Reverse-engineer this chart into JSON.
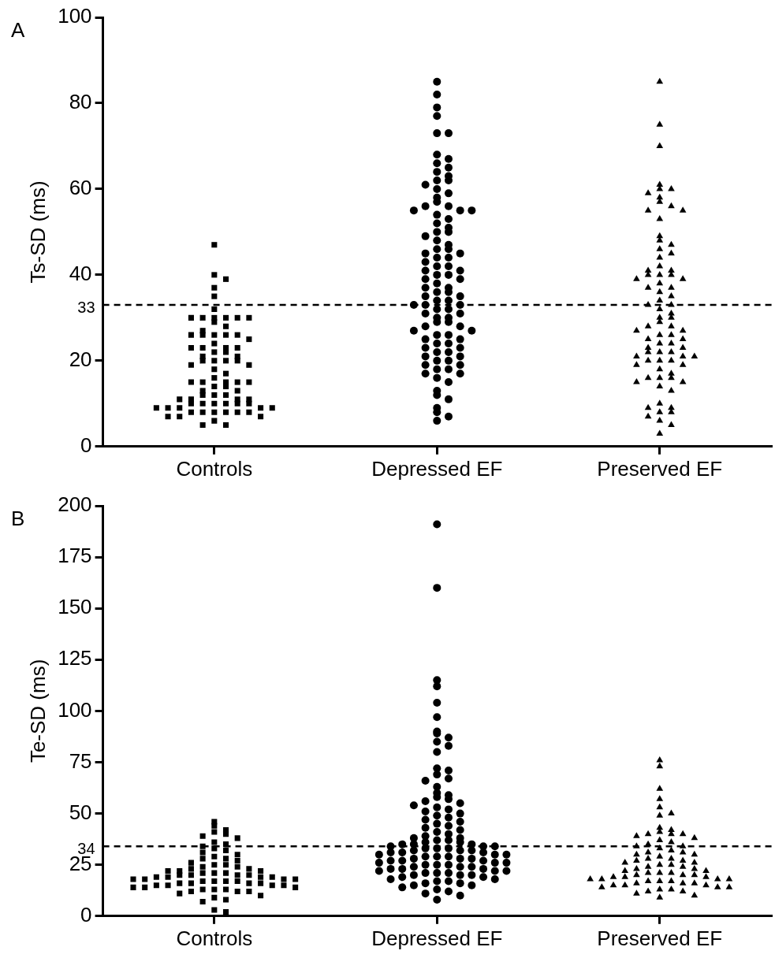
{
  "chart_data": [
    {
      "type": "scatter",
      "title": "A",
      "ylabel": "Ts-SD (ms)",
      "categories": [
        "Controls",
        "Depressed EF",
        "Preserved EF"
      ],
      "ylim": [
        0,
        100
      ],
      "yticks": [
        0,
        20,
        40,
        60,
        80,
        100
      ],
      "ref_lines": [
        {
          "axis": "y",
          "value": 33,
          "label": "33",
          "line_style": "dashed"
        }
      ],
      "series": [
        {
          "color": "#000000",
          "marker": "square",
          "x": [
            "Controls",
            "Controls",
            "Controls",
            "Controls",
            "Controls",
            "Controls",
            "Controls",
            "Controls",
            "Controls",
            "Controls",
            "Controls",
            "Controls",
            "Controls",
            "Controls",
            "Controls",
            "Controls",
            "Controls",
            "Controls",
            "Controls",
            "Controls",
            "Controls",
            "Controls",
            "Controls",
            "Controls",
            "Controls",
            "Controls",
            "Controls",
            "Controls",
            "Controls",
            "Controls",
            "Controls",
            "Controls",
            "Controls",
            "Controls",
            "Controls",
            "Controls",
            "Controls",
            "Controls",
            "Controls",
            "Controls",
            "Controls",
            "Controls",
            "Controls",
            "Controls",
            "Controls",
            "Controls",
            "Controls",
            "Controls",
            "Controls",
            "Controls",
            "Controls",
            "Controls",
            "Controls",
            "Controls",
            "Controls",
            "Controls",
            "Controls",
            "Controls",
            "Controls",
            "Controls",
            "Controls",
            "Controls",
            "Controls",
            "Controls",
            "Controls",
            "Controls",
            "Controls",
            "Controls",
            "Controls",
            "Controls",
            "Controls",
            "Controls",
            "Controls",
            "Controls",
            "Controls",
            "Controls",
            "Controls",
            "Controls"
          ],
          "values": [
            47,
            40,
            39,
            37,
            35,
            32,
            30,
            30,
            30,
            30,
            30,
            30,
            29,
            28,
            27,
            26,
            26,
            26,
            26,
            26,
            25,
            24,
            23,
            23,
            23,
            23,
            22,
            22,
            21,
            21,
            20,
            20,
            20,
            20,
            19,
            19,
            18,
            17,
            16,
            15,
            15,
            15,
            15,
            15,
            14,
            14,
            13,
            13,
            12,
            12,
            12,
            11,
            11,
            11,
            11,
            10,
            10,
            10,
            10,
            10,
            10,
            9,
            9,
            9,
            9,
            9,
            8,
            8,
            8,
            8,
            8,
            8,
            7,
            7,
            7,
            6,
            5,
            5
          ]
        },
        {
          "color": "#000000",
          "marker": "circle",
          "x": [
            "Depressed EF",
            "Depressed EF",
            "Depressed EF",
            "Depressed EF",
            "Depressed EF",
            "Depressed EF",
            "Depressed EF",
            "Depressed EF",
            "Depressed EF",
            "Depressed EF",
            "Depressed EF",
            "Depressed EF",
            "Depressed EF",
            "Depressed EF",
            "Depressed EF",
            "Depressed EF",
            "Depressed EF",
            "Depressed EF",
            "Depressed EF",
            "Depressed EF",
            "Depressed EF",
            "Depressed EF",
            "Depressed EF",
            "Depressed EF",
            "Depressed EF",
            "Depressed EF",
            "Depressed EF",
            "Depressed EF",
            "Depressed EF",
            "Depressed EF",
            "Depressed EF",
            "Depressed EF",
            "Depressed EF",
            "Depressed EF",
            "Depressed EF",
            "Depressed EF",
            "Depressed EF",
            "Depressed EF",
            "Depressed EF",
            "Depressed EF",
            "Depressed EF",
            "Depressed EF",
            "Depressed EF",
            "Depressed EF",
            "Depressed EF",
            "Depressed EF",
            "Depressed EF",
            "Depressed EF",
            "Depressed EF",
            "Depressed EF",
            "Depressed EF",
            "Depressed EF",
            "Depressed EF",
            "Depressed EF",
            "Depressed EF",
            "Depressed EF",
            "Depressed EF",
            "Depressed EF",
            "Depressed EF",
            "Depressed EF",
            "Depressed EF",
            "Depressed EF",
            "Depressed EF",
            "Depressed EF",
            "Depressed EF",
            "Depressed EF",
            "Depressed EF",
            "Depressed EF",
            "Depressed EF",
            "Depressed EF",
            "Depressed EF",
            "Depressed EF",
            "Depressed EF",
            "Depressed EF",
            "Depressed EF",
            "Depressed EF",
            "Depressed EF",
            "Depressed EF",
            "Depressed EF",
            "Depressed EF",
            "Depressed EF",
            "Depressed EF",
            "Depressed EF",
            "Depressed EF",
            "Depressed EF",
            "Depressed EF",
            "Depressed EF",
            "Depressed EF",
            "Depressed EF",
            "Depressed EF",
            "Depressed EF",
            "Depressed EF",
            "Depressed EF",
            "Depressed EF",
            "Depressed EF",
            "Depressed EF",
            "Depressed EF",
            "Depressed EF",
            "Depressed EF",
            "Depressed EF",
            "Depressed EF"
          ],
          "values": [
            85,
            82,
            79,
            77,
            73,
            73,
            68,
            67,
            66,
            65,
            64,
            63,
            62,
            62,
            61,
            60,
            59,
            58,
            57,
            56,
            56,
            55,
            55,
            55,
            54,
            53,
            52,
            51,
            50,
            50,
            49,
            48,
            47,
            46,
            46,
            45,
            45,
            44,
            44,
            43,
            42,
            42,
            41,
            41,
            40,
            40,
            39,
            39,
            38,
            37,
            37,
            36,
            36,
            35,
            35,
            34,
            34,
            33,
            33,
            33,
            32,
            32,
            31,
            31,
            30,
            30,
            29,
            29,
            28,
            28,
            27,
            27,
            26,
            26,
            25,
            25,
            24,
            24,
            23,
            23,
            22,
            22,
            21,
            21,
            20,
            20,
            19,
            19,
            18,
            18,
            17,
            17,
            16,
            15,
            13,
            12,
            11,
            9,
            8,
            7,
            6
          ]
        },
        {
          "color": "#000000",
          "marker": "triangle",
          "x": [
            "Preserved EF",
            "Preserved EF",
            "Preserved EF",
            "Preserved EF",
            "Preserved EF",
            "Preserved EF",
            "Preserved EF",
            "Preserved EF",
            "Preserved EF",
            "Preserved EF",
            "Preserved EF",
            "Preserved EF",
            "Preserved EF",
            "Preserved EF",
            "Preserved EF",
            "Preserved EF",
            "Preserved EF",
            "Preserved EF",
            "Preserved EF",
            "Preserved EF",
            "Preserved EF",
            "Preserved EF",
            "Preserved EF",
            "Preserved EF",
            "Preserved EF",
            "Preserved EF",
            "Preserved EF",
            "Preserved EF",
            "Preserved EF",
            "Preserved EF",
            "Preserved EF",
            "Preserved EF",
            "Preserved EF",
            "Preserved EF",
            "Preserved EF",
            "Preserved EF",
            "Preserved EF",
            "Preserved EF",
            "Preserved EF",
            "Preserved EF",
            "Preserved EF",
            "Preserved EF",
            "Preserved EF",
            "Preserved EF",
            "Preserved EF",
            "Preserved EF",
            "Preserved EF",
            "Preserved EF",
            "Preserved EF",
            "Preserved EF",
            "Preserved EF",
            "Preserved EF",
            "Preserved EF",
            "Preserved EF",
            "Preserved EF",
            "Preserved EF",
            "Preserved EF",
            "Preserved EF",
            "Preserved EF",
            "Preserved EF",
            "Preserved EF",
            "Preserved EF",
            "Preserved EF",
            "Preserved EF",
            "Preserved EF",
            "Preserved EF",
            "Preserved EF",
            "Preserved EF",
            "Preserved EF",
            "Preserved EF",
            "Preserved EF",
            "Preserved EF",
            "Preserved EF",
            "Preserved EF",
            "Preserved EF",
            "Preserved EF",
            "Preserved EF",
            "Preserved EF",
            "Preserved EF",
            "Preserved EF",
            "Preserved EF"
          ],
          "values": [
            85,
            75,
            70,
            61,
            60,
            60,
            59,
            58,
            57,
            56,
            55,
            55,
            53,
            49,
            48,
            47,
            46,
            45,
            44,
            42,
            41,
            41,
            40,
            40,
            40,
            39,
            39,
            38,
            37,
            37,
            36,
            35,
            34,
            33,
            33,
            32,
            31,
            30,
            30,
            29,
            28,
            28,
            27,
            27,
            26,
            26,
            25,
            25,
            24,
            24,
            23,
            23,
            22,
            22,
            22,
            21,
            21,
            21,
            20,
            20,
            20,
            19,
            19,
            18,
            17,
            16,
            16,
            16,
            15,
            15,
            14,
            13,
            10,
            9,
            9,
            8,
            8,
            7,
            6,
            5,
            3
          ]
        }
      ]
    },
    {
      "type": "scatter",
      "title": "B",
      "ylabel": "Te-SD (ms)",
      "categories": [
        "Controls",
        "Depressed EF",
        "Preserved EF"
      ],
      "ylim": [
        0,
        200
      ],
      "yticks": [
        0,
        25,
        50,
        75,
        100,
        125,
        150,
        175,
        200
      ],
      "ref_lines": [
        {
          "axis": "y",
          "value": 34,
          "label": "34",
          "line_style": "dashed"
        }
      ],
      "series": [
        {
          "color": "#000000",
          "marker": "square",
          "x": [
            "Controls",
            "Controls",
            "Controls",
            "Controls",
            "Controls",
            "Controls",
            "Controls",
            "Controls",
            "Controls",
            "Controls",
            "Controls",
            "Controls",
            "Controls",
            "Controls",
            "Controls",
            "Controls",
            "Controls",
            "Controls",
            "Controls",
            "Controls",
            "Controls",
            "Controls",
            "Controls",
            "Controls",
            "Controls",
            "Controls",
            "Controls",
            "Controls",
            "Controls",
            "Controls",
            "Controls",
            "Controls",
            "Controls",
            "Controls",
            "Controls",
            "Controls",
            "Controls",
            "Controls",
            "Controls",
            "Controls",
            "Controls",
            "Controls",
            "Controls",
            "Controls",
            "Controls",
            "Controls",
            "Controls",
            "Controls",
            "Controls",
            "Controls",
            "Controls",
            "Controls",
            "Controls",
            "Controls",
            "Controls",
            "Controls",
            "Controls",
            "Controls",
            "Controls",
            "Controls",
            "Controls",
            "Controls",
            "Controls",
            "Controls",
            "Controls",
            "Controls",
            "Controls",
            "Controls",
            "Controls",
            "Controls",
            "Controls"
          ],
          "values": [
            46,
            44,
            42,
            41,
            40,
            39,
            38,
            36,
            35,
            34,
            33,
            32,
            31,
            30,
            29,
            28,
            28,
            27,
            26,
            25,
            25,
            24,
            24,
            23,
            23,
            22,
            22,
            22,
            21,
            21,
            21,
            20,
            20,
            20,
            20,
            19,
            19,
            19,
            19,
            18,
            18,
            18,
            18,
            17,
            17,
            17,
            17,
            16,
            16,
            16,
            16,
            15,
            15,
            15,
            15,
            14,
            14,
            14,
            13,
            13,
            13,
            12,
            12,
            12,
            11,
            10,
            9,
            8,
            7,
            3,
            2
          ]
        },
        {
          "color": "#000000",
          "marker": "circle",
          "x": [
            "Depressed EF",
            "Depressed EF",
            "Depressed EF",
            "Depressed EF",
            "Depressed EF",
            "Depressed EF",
            "Depressed EF",
            "Depressed EF",
            "Depressed EF",
            "Depressed EF",
            "Depressed EF",
            "Depressed EF",
            "Depressed EF",
            "Depressed EF",
            "Depressed EF",
            "Depressed EF",
            "Depressed EF",
            "Depressed EF",
            "Depressed EF",
            "Depressed EF",
            "Depressed EF",
            "Depressed EF",
            "Depressed EF",
            "Depressed EF",
            "Depressed EF",
            "Depressed EF",
            "Depressed EF",
            "Depressed EF",
            "Depressed EF",
            "Depressed EF",
            "Depressed EF",
            "Depressed EF",
            "Depressed EF",
            "Depressed EF",
            "Depressed EF",
            "Depressed EF",
            "Depressed EF",
            "Depressed EF",
            "Depressed EF",
            "Depressed EF",
            "Depressed EF",
            "Depressed EF",
            "Depressed EF",
            "Depressed EF",
            "Depressed EF",
            "Depressed EF",
            "Depressed EF",
            "Depressed EF",
            "Depressed EF",
            "Depressed EF",
            "Depressed EF",
            "Depressed EF",
            "Depressed EF",
            "Depressed EF",
            "Depressed EF",
            "Depressed EF",
            "Depressed EF",
            "Depressed EF",
            "Depressed EF",
            "Depressed EF",
            "Depressed EF",
            "Depressed EF",
            "Depressed EF",
            "Depressed EF",
            "Depressed EF",
            "Depressed EF",
            "Depressed EF",
            "Depressed EF",
            "Depressed EF",
            "Depressed EF",
            "Depressed EF",
            "Depressed EF",
            "Depressed EF",
            "Depressed EF",
            "Depressed EF",
            "Depressed EF",
            "Depressed EF",
            "Depressed EF",
            "Depressed EF",
            "Depressed EF",
            "Depressed EF",
            "Depressed EF",
            "Depressed EF",
            "Depressed EF",
            "Depressed EF",
            "Depressed EF",
            "Depressed EF",
            "Depressed EF",
            "Depressed EF",
            "Depressed EF",
            "Depressed EF",
            "Depressed EF",
            "Depressed EF",
            "Depressed EF",
            "Depressed EF",
            "Depressed EF",
            "Depressed EF",
            "Depressed EF",
            "Depressed EF",
            "Depressed EF",
            "Depressed EF",
            "Depressed EF",
            "Depressed EF",
            "Depressed EF",
            "Depressed EF",
            "Depressed EF",
            "Depressed EF",
            "Depressed EF",
            "Depressed EF",
            "Depressed EF"
          ],
          "values": [
            191,
            160,
            115,
            112,
            104,
            97,
            90,
            89,
            87,
            85,
            83,
            80,
            72,
            71,
            69,
            67,
            66,
            63,
            60,
            59,
            58,
            57,
            56,
            55,
            54,
            53,
            52,
            51,
            50,
            49,
            48,
            47,
            46,
            45,
            44,
            43,
            42,
            41,
            40,
            39,
            38,
            38,
            37,
            37,
            36,
            36,
            35,
            35,
            35,
            34,
            34,
            34,
            33,
            33,
            33,
            32,
            32,
            32,
            31,
            31,
            31,
            30,
            30,
            30,
            29,
            29,
            29,
            28,
            28,
            28,
            27,
            27,
            27,
            26,
            26,
            26,
            25,
            25,
            25,
            24,
            24,
            24,
            23,
            23,
            23,
            22,
            22,
            22,
            21,
            21,
            21,
            20,
            20,
            20,
            19,
            19,
            18,
            18,
            17,
            17,
            16,
            16,
            15,
            15,
            14,
            13,
            12,
            11,
            10,
            8
          ]
        },
        {
          "color": "#000000",
          "marker": "triangle",
          "x": [
            "Preserved EF",
            "Preserved EF",
            "Preserved EF",
            "Preserved EF",
            "Preserved EF",
            "Preserved EF",
            "Preserved EF",
            "Preserved EF",
            "Preserved EF",
            "Preserved EF",
            "Preserved EF",
            "Preserved EF",
            "Preserved EF",
            "Preserved EF",
            "Preserved EF",
            "Preserved EF",
            "Preserved EF",
            "Preserved EF",
            "Preserved EF",
            "Preserved EF",
            "Preserved EF",
            "Preserved EF",
            "Preserved EF",
            "Preserved EF",
            "Preserved EF",
            "Preserved EF",
            "Preserved EF",
            "Preserved EF",
            "Preserved EF",
            "Preserved EF",
            "Preserved EF",
            "Preserved EF",
            "Preserved EF",
            "Preserved EF",
            "Preserved EF",
            "Preserved EF",
            "Preserved EF",
            "Preserved EF",
            "Preserved EF",
            "Preserved EF",
            "Preserved EF",
            "Preserved EF",
            "Preserved EF",
            "Preserved EF",
            "Preserved EF",
            "Preserved EF",
            "Preserved EF",
            "Preserved EF",
            "Preserved EF",
            "Preserved EF",
            "Preserved EF",
            "Preserved EF",
            "Preserved EF",
            "Preserved EF",
            "Preserved EF",
            "Preserved EF",
            "Preserved EF",
            "Preserved EF",
            "Preserved EF",
            "Preserved EF",
            "Preserved EF",
            "Preserved EF",
            "Preserved EF",
            "Preserved EF",
            "Preserved EF",
            "Preserved EF",
            "Preserved EF",
            "Preserved EF",
            "Preserved EF",
            "Preserved EF",
            "Preserved EF",
            "Preserved EF",
            "Preserved EF"
          ],
          "values": [
            76,
            73,
            62,
            57,
            53,
            50,
            49,
            43,
            42,
            41,
            40,
            40,
            40,
            39,
            38,
            37,
            36,
            35,
            34,
            34,
            33,
            32,
            31,
            31,
            30,
            30,
            29,
            28,
            28,
            27,
            27,
            26,
            26,
            25,
            25,
            24,
            24,
            23,
            23,
            22,
            22,
            21,
            21,
            21,
            20,
            20,
            20,
            19,
            19,
            19,
            18,
            18,
            18,
            18,
            17,
            17,
            17,
            16,
            16,
            16,
            15,
            15,
            15,
            14,
            14,
            14,
            13,
            13,
            12,
            12,
            11,
            10,
            9
          ]
        }
      ]
    }
  ]
}
